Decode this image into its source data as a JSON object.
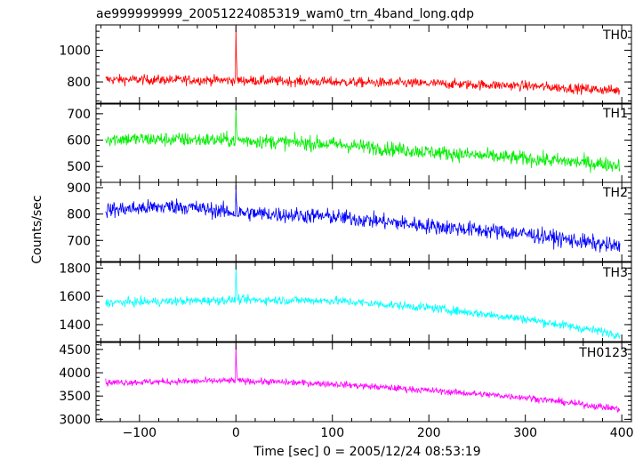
{
  "chart_data": {
    "type": "line",
    "title": "ae999999999_20051224085319_wam0_trn_4band_long.qdp",
    "xlabel": "Time [sec] 0 = 2005/12/24 08:53:19",
    "ylabel": "Counts/sec",
    "xlim": [
      -145,
      410
    ],
    "xticks": [
      -100,
      0,
      100,
      200,
      300,
      400
    ],
    "xtick_labels": [
      "−100",
      "0",
      "100",
      "200",
      "300",
      "400"
    ],
    "x_start": -135,
    "x_end": 398,
    "panels": [
      {
        "name": "TH0",
        "color": "#ff0000",
        "ylim": [
          660,
          1160
        ],
        "yticks": [
          800,
          1000
        ],
        "ytick_labels": [
          "800",
          "1000"
        ],
        "trend": [
          [
            -135,
            815
          ],
          [
            0,
            810
          ],
          [
            200,
            790
          ],
          [
            300,
            775
          ],
          [
            398,
            745
          ]
        ],
        "noise": 40,
        "spike": {
          "x": 0,
          "peak": 1150
        }
      },
      {
        "name": "TH1",
        "color": "#00ee00",
        "ylim": [
          440,
          740
        ],
        "yticks": [
          500,
          600,
          700
        ],
        "ytick_labels": [
          "500",
          "600",
          "700"
        ],
        "trend": [
          [
            -135,
            605
          ],
          [
            0,
            600
          ],
          [
            100,
            585
          ],
          [
            200,
            555
          ],
          [
            300,
            530
          ],
          [
            398,
            505
          ]
        ],
        "noise": 35,
        "spike": {
          "x": 0,
          "peak": 730
        }
      },
      {
        "name": "TH2",
        "color": "#0000ff",
        "ylim": [
          620,
          920
        ],
        "yticks": [
          700,
          800,
          900
        ],
        "ytick_labels": [
          "700",
          "800",
          "900"
        ],
        "trend": [
          [
            -135,
            815
          ],
          [
            -60,
            830
          ],
          [
            0,
            805
          ],
          [
            100,
            790
          ],
          [
            200,
            755
          ],
          [
            300,
            725
          ],
          [
            398,
            675
          ]
        ],
        "noise": 38,
        "spike": {
          "x": 0,
          "peak": 910
        }
      },
      {
        "name": "TH3",
        "color": "#00ffff",
        "ylim": [
          1280,
          1840
        ],
        "yticks": [
          1400,
          1600,
          1800
        ],
        "ytick_labels": [
          "1400",
          "1600",
          "1800"
        ],
        "trend": [
          [
            -135,
            1555
          ],
          [
            0,
            1575
          ],
          [
            100,
            1570
          ],
          [
            200,
            1520
          ],
          [
            300,
            1440
          ],
          [
            398,
            1330
          ]
        ],
        "noise": 40,
        "spike": {
          "x": 0,
          "peak": 1830
        }
      },
      {
        "name": "TH0123",
        "color": "#ff00ff",
        "ylim": [
          2950,
          4650
        ],
        "yticks": [
          3000,
          3500,
          4000,
          4500
        ],
        "ytick_labels": [
          "3000",
          "3500",
          "4000",
          "4500"
        ],
        "trend": [
          [
            -135,
            3790
          ],
          [
            0,
            3830
          ],
          [
            100,
            3760
          ],
          [
            200,
            3620
          ],
          [
            300,
            3470
          ],
          [
            398,
            3220
          ]
        ],
        "noise": 90,
        "spike": {
          "x": 0,
          "peak": 4620
        }
      }
    ],
    "grid": false,
    "legend": "none"
  }
}
